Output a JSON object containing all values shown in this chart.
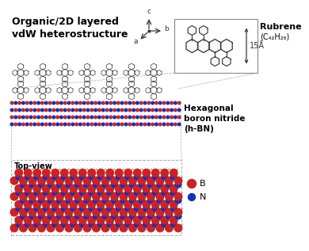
{
  "title": "Organic/2D layered\nvdW heterostructure",
  "title_fontsize": 9,
  "rubrene_label": "Rubrene",
  "rubrene_formula": "(C₄₂H₂₈)",
  "hbn_label": "Hexagonal\nboron nitride\n(h-BN)",
  "angstrom_label": "15Å",
  "topview_label": "Top-view",
  "legend_B": "B",
  "legend_N": "N",
  "B_color": "#cc2222",
  "N_color": "#1133bb",
  "dark": "#333333",
  "gray": "#888888",
  "light_gray": "#aaaaaa"
}
